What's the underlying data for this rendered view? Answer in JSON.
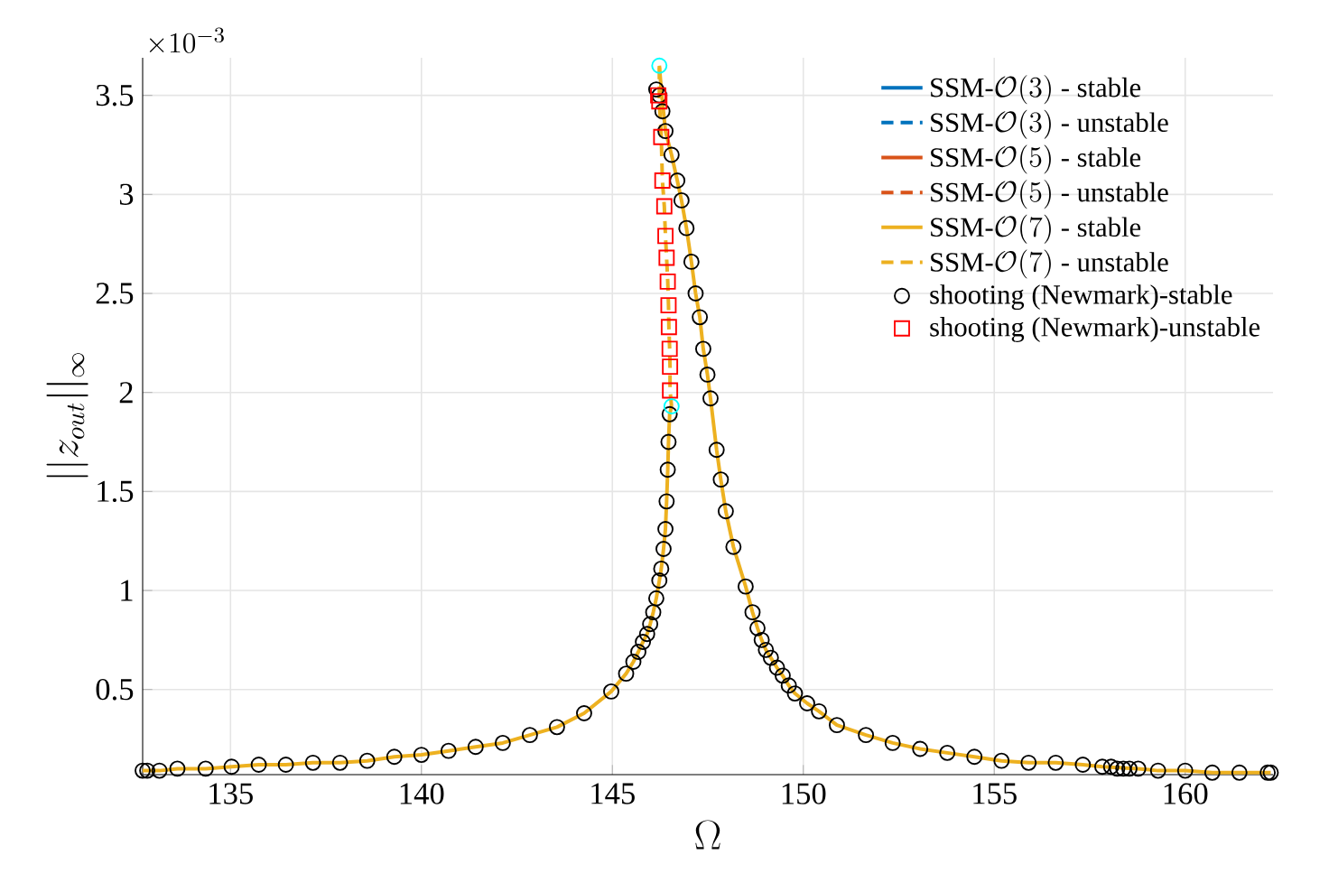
{
  "chart_data": {
    "type": "line",
    "xlabel": "\\Omega",
    "ylabel": "||z_{out}||_\\infty",
    "annotations": [
      "\\times 10^{-3}"
    ],
    "xlim": [
      132.7,
      162.3
    ],
    "ylim": [
      0.07,
      3.69
    ],
    "xticks": [
      135,
      140,
      145,
      150,
      155,
      160
    ],
    "yticks": [
      0.5,
      1,
      1.5,
      2,
      2.5,
      3,
      3.5
    ],
    "grid": true,
    "legend": "top right",
    "series": [
      {
        "name": "\\mbox{SSM-}\\mathcal{O}(3)\\mbox{ - stable}",
        "color": "#0072bd",
        "line_style": "solid",
        "values": [
          null
        ]
      },
      {
        "name": "\\mbox{SSM-}\\mathcal{O}(3)\\mbox{ - unstable}",
        "color": "#0072bd",
        "line_style": "dashed",
        "values": [
          null
        ]
      },
      {
        "name": "\\mbox{SSM-}\\mathcal{O}(5)\\mbox{ - stable}",
        "color": "#d95319",
        "line_style": "solid",
        "values": [
          null
        ]
      },
      {
        "name": "\\mbox{SSM-}\\mathcal{O}(5)\\mbox{ - unstable}",
        "color": "#d95319",
        "line_style": "dashed",
        "values": [
          null
        ]
      },
      {
        "name": "\\mbox{SSM-}\\mathcal{O}(7)\\mbox{ - stable}",
        "color": "#edb120",
        "line_style": "solid",
        "x": [
          132.7,
          133.14,
          133.61,
          134.35,
          135.03,
          135.74,
          136.45,
          137.16,
          137.87,
          138.58,
          139.29,
          140.0,
          140.71,
          141.42,
          142.13,
          142.84,
          143.55,
          144.26,
          144.97,
          145.36,
          145.55,
          145.68,
          145.8,
          145.91,
          145.99,
          146.07,
          146.15,
          146.23,
          146.28,
          146.34,
          146.39,
          146.42,
          146.45,
          146.47,
          146.5,
          146.55,
          null,
          146.23,
          146.28,
          146.39,
          146.55,
          146.7,
          146.81,
          146.94,
          147.07,
          147.18,
          147.29,
          147.38,
          147.49,
          147.57,
          147.73,
          147.84,
          147.97,
          148.17,
          148.49,
          148.67,
          148.8,
          148.91,
          149.02,
          149.15,
          149.31,
          149.46,
          149.62,
          149.78,
          150.1,
          150.41,
          150.88,
          151.64,
          152.34,
          153.06,
          153.77,
          154.48,
          155.19,
          155.9,
          156.61,
          157.32,
          157.83,
          158.77,
          159.29,
          160.0,
          160.71,
          161.42,
          162.16,
          162.24
        ],
        "values": [
          0.09,
          0.09,
          0.1,
          0.1,
          0.11,
          0.12,
          0.12,
          0.13,
          0.13,
          0.14,
          0.16,
          0.17,
          0.19,
          0.21,
          0.23,
          0.27,
          0.31,
          0.38,
          0.49,
          0.58,
          0.64,
          0.69,
          0.74,
          0.78,
          0.83,
          0.89,
          0.96,
          1.05,
          1.11,
          1.21,
          1.31,
          1.45,
          1.61,
          1.75,
          1.89,
          1.93,
          null,
          3.65,
          3.53,
          3.32,
          3.2,
          3.07,
          2.97,
          2.83,
          2.66,
          2.5,
          2.38,
          2.22,
          2.09,
          1.97,
          1.71,
          1.56,
          1.4,
          1.22,
          1.02,
          0.89,
          0.81,
          0.75,
          0.7,
          0.66,
          0.61,
          0.57,
          0.52,
          0.48,
          0.43,
          0.39,
          0.32,
          0.27,
          0.23,
          0.2,
          0.18,
          0.16,
          0.14,
          0.13,
          0.13,
          0.12,
          0.11,
          0.1,
          0.09,
          0.09,
          0.08,
          0.08,
          0.08,
          0.08
        ]
      },
      {
        "name": "\\mbox{SSM-}\\mathcal{O}(7)\\mbox{ - unstable}",
        "color": "#ecb01f",
        "line_style": "dashed",
        "x": [
          146.55,
          146.51,
          146.51,
          146.5,
          146.48,
          146.47,
          146.45,
          146.42,
          146.39,
          146.36,
          146.31,
          146.28,
          146.23,
          146.23
        ],
        "values": [
          1.93,
          2.01,
          2.13,
          2.22,
          2.33,
          2.44,
          2.56,
          2.68,
          2.79,
          2.94,
          3.07,
          3.29,
          3.47,
          3.65
        ]
      },
      {
        "name": "\\mbox{shooting (Newmark)-stable}",
        "type": "scatter",
        "marker": "circle",
        "color": "#000000",
        "x": [
          132.7,
          132.82,
          133.14,
          133.61,
          134.35,
          135.03,
          135.74,
          136.45,
          137.16,
          137.87,
          138.58,
          139.29,
          140.0,
          140.71,
          141.42,
          142.13,
          142.84,
          143.55,
          144.26,
          144.97,
          145.36,
          145.55,
          145.68,
          145.8,
          145.91,
          145.99,
          146.07,
          146.15,
          146.23,
          146.28,
          146.34,
          146.39,
          146.42,
          146.45,
          146.47,
          146.5,
          146.15,
          146.23,
          146.31,
          146.39,
          146.55,
          146.7,
          146.81,
          146.94,
          147.07,
          147.18,
          147.29,
          147.38,
          147.49,
          147.57,
          147.73,
          147.84,
          147.97,
          148.17,
          148.49,
          148.67,
          148.8,
          148.91,
          149.02,
          149.15,
          149.31,
          149.46,
          149.62,
          149.78,
          150.1,
          150.41,
          150.88,
          151.64,
          152.34,
          153.06,
          153.77,
          154.48,
          155.19,
          155.9,
          156.61,
          157.32,
          157.83,
          158.06,
          158.22,
          158.38,
          158.54,
          158.77,
          159.29,
          160.0,
          160.71,
          161.42,
          162.16,
          162.24
        ],
        "values": [
          0.09,
          0.09,
          0.09,
          0.1,
          0.1,
          0.11,
          0.12,
          0.12,
          0.13,
          0.13,
          0.14,
          0.16,
          0.17,
          0.19,
          0.21,
          0.23,
          0.27,
          0.31,
          0.38,
          0.49,
          0.58,
          0.64,
          0.69,
          0.74,
          0.78,
          0.83,
          0.89,
          0.96,
          1.05,
          1.11,
          1.21,
          1.31,
          1.45,
          1.61,
          1.75,
          1.89,
          3.53,
          3.5,
          3.42,
          3.32,
          3.2,
          3.07,
          2.97,
          2.83,
          2.66,
          2.5,
          2.38,
          2.22,
          2.09,
          1.97,
          1.71,
          1.56,
          1.4,
          1.22,
          1.02,
          0.89,
          0.81,
          0.75,
          0.7,
          0.66,
          0.61,
          0.57,
          0.52,
          0.48,
          0.43,
          0.39,
          0.32,
          0.27,
          0.23,
          0.2,
          0.18,
          0.16,
          0.14,
          0.13,
          0.13,
          0.12,
          0.11,
          0.11,
          0.1,
          0.1,
          0.1,
          0.1,
          0.09,
          0.09,
          0.08,
          0.08,
          0.08,
          0.08
        ]
      },
      {
        "name": "\\mbox{shooting (Newmark)-unstable}",
        "type": "scatter",
        "marker": "square",
        "color": "#ff0000",
        "x": [
          146.2,
          146.23,
          146.28,
          146.31,
          146.36,
          146.39,
          146.42,
          146.45,
          146.47,
          146.48,
          146.5,
          146.51,
          146.51
        ],
        "values": [
          3.5,
          3.47,
          3.29,
          3.07,
          2.94,
          2.79,
          2.68,
          2.56,
          2.44,
          2.33,
          2.22,
          2.13,
          2.01
        ]
      },
      {
        "type": "scatter",
        "marker": "circle",
        "color": "#00ffff",
        "x": [
          146.23,
          146.55
        ],
        "values": [
          3.65,
          1.93
        ]
      }
    ]
  }
}
